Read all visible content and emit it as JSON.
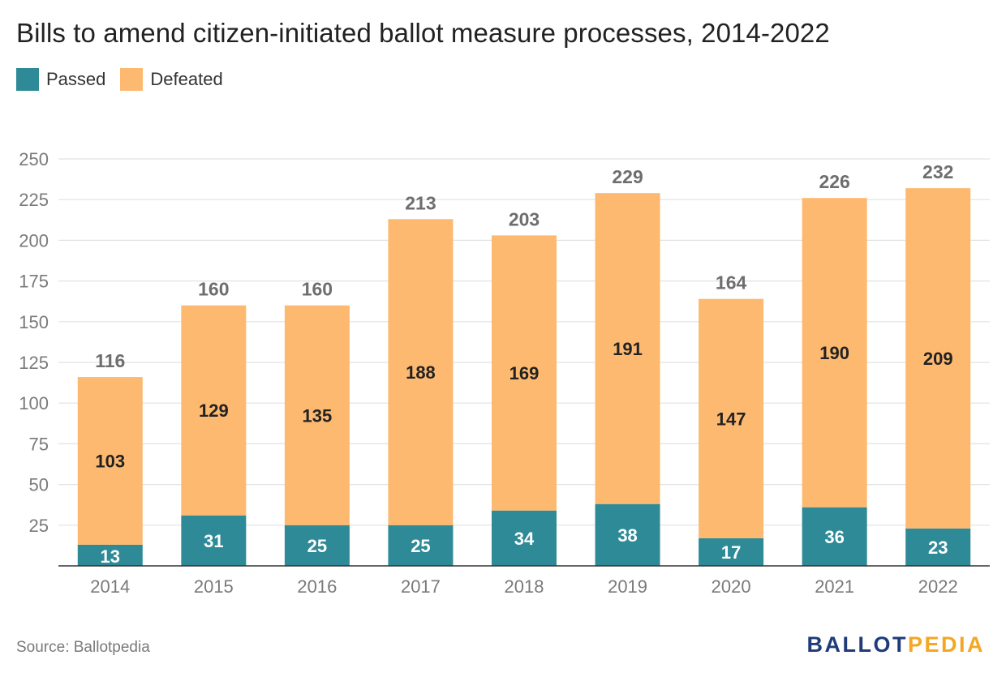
{
  "title": "Bills to amend citizen-initiated ballot measure processes, 2014-2022",
  "legend": {
    "passed_label": "Passed",
    "defeated_label": "Defeated"
  },
  "source": "Source: Ballotpedia",
  "logo": {
    "part1": "BALLOT",
    "part2": "PEDIA",
    "color1": "#1f3b7a",
    "color2": "#f5a623"
  },
  "colors": {
    "passed": "#2e8a96",
    "defeated": "#fdb970",
    "grid": "#e2e2e2",
    "axis": "#333333",
    "tick_text": "#7a7a7a",
    "inner_label": "#222222",
    "inner_label_passed": "#ffffff",
    "total_label": "#6e6e6e"
  },
  "chart_data": {
    "type": "bar",
    "stacked": true,
    "categories": [
      "2014",
      "2015",
      "2016",
      "2017",
      "2018",
      "2019",
      "2020",
      "2021",
      "2022"
    ],
    "series": [
      {
        "name": "Passed",
        "values": [
          13,
          31,
          25,
          25,
          34,
          38,
          17,
          36,
          23
        ]
      },
      {
        "name": "Defeated",
        "values": [
          103,
          129,
          135,
          188,
          169,
          191,
          147,
          190,
          209
        ]
      }
    ],
    "totals": [
      116,
      160,
      160,
      213,
      203,
      229,
      164,
      226,
      232
    ],
    "yticks": [
      25,
      50,
      75,
      100,
      125,
      150,
      175,
      200,
      225,
      250
    ],
    "ylim": [
      0,
      250
    ],
    "grid": true,
    "legend_position": "top-left"
  }
}
